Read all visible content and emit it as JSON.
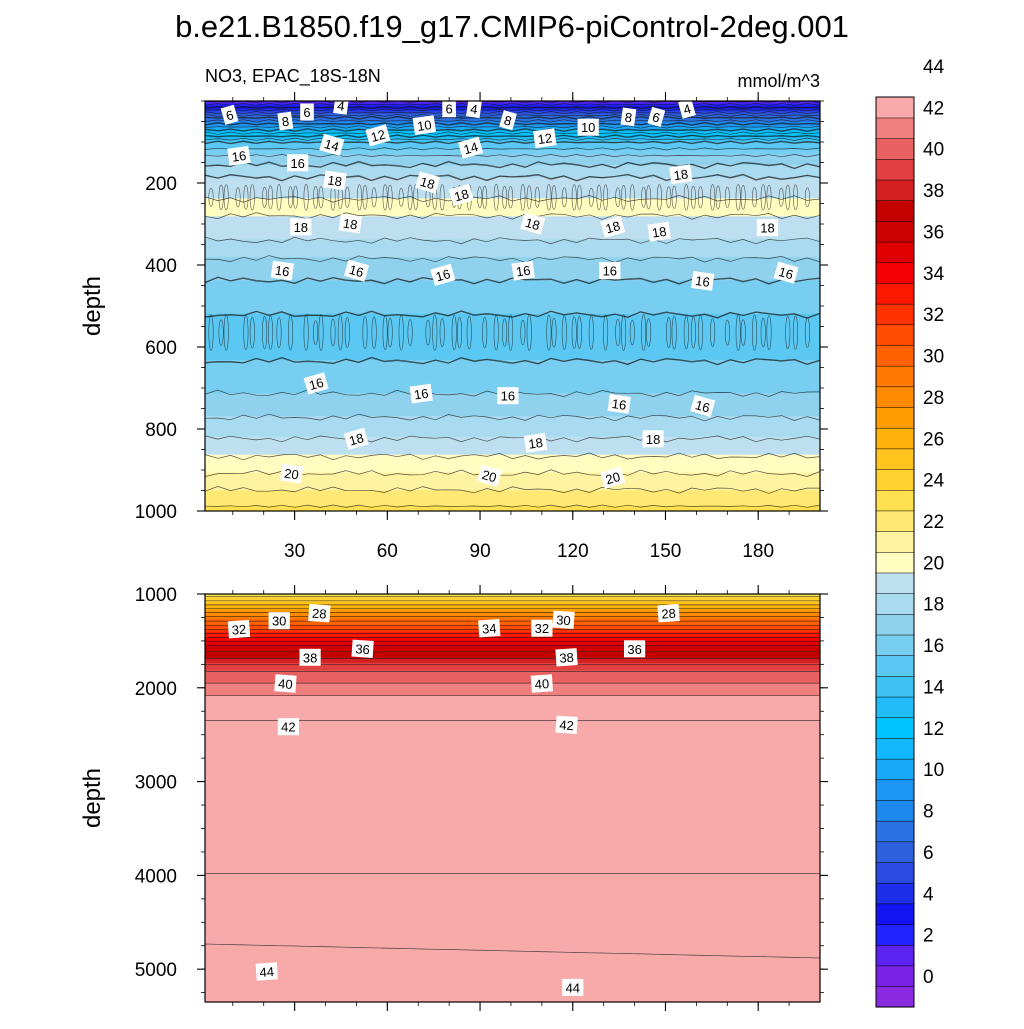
{
  "chart_data": {
    "type": "heatmap",
    "title": "b.e21.B1850.f19_g17.CMIP6-piControl-2deg.001",
    "left_string": "NO3, EPAC_18S-18N",
    "right_string": "mmol/m^3",
    "ylabel": "depth",
    "xlim": [
      1,
      200
    ],
    "x_ticks": [
      30,
      60,
      90,
      120,
      150,
      180
    ],
    "x_tick_labels": [
      "30",
      "60",
      "90",
      "120",
      "150",
      "180"
    ],
    "panels": [
      {
        "name": "upper",
        "ylim": [
          0,
          1000
        ],
        "y_reversed": true,
        "y_ticks": [
          200,
          400,
          600,
          800,
          1000
        ],
        "y_tick_labels": [
          "200",
          "400",
          "600",
          "800",
          "1000"
        ],
        "profile": [
          {
            "depth": 0,
            "value": 0
          },
          {
            "depth": 15,
            "value": 2
          },
          {
            "depth": 40,
            "value": 6
          },
          {
            "depth": 70,
            "value": 10
          },
          {
            "depth": 100,
            "value": 14
          },
          {
            "depth": 140,
            "value": 16.5
          },
          {
            "depth": 200,
            "value": 18.5
          },
          {
            "depth": 260,
            "value": 19.3
          },
          {
            "depth": 330,
            "value": 18.2
          },
          {
            "depth": 420,
            "value": 16.2
          },
          {
            "depth": 520,
            "value": 15.0
          },
          {
            "depth": 600,
            "value": 14.6
          },
          {
            "depth": 700,
            "value": 15.8
          },
          {
            "depth": 800,
            "value": 17.5
          },
          {
            "depth": 900,
            "value": 19.8
          },
          {
            "depth": 1000,
            "value": 22.3
          }
        ],
        "contour_labels": [
          {
            "x": 9,
            "depth": 35,
            "text": "6"
          },
          {
            "x": 27,
            "depth": 50,
            "text": "8"
          },
          {
            "x": 34,
            "depth": 28,
            "text": "6"
          },
          {
            "x": 45,
            "depth": 12,
            "text": "4"
          },
          {
            "x": 42,
            "depth": 108,
            "text": "14"
          },
          {
            "x": 57,
            "depth": 85,
            "text": "12"
          },
          {
            "x": 72,
            "depth": 60,
            "text": "10"
          },
          {
            "x": 80,
            "depth": 20,
            "text": "6"
          },
          {
            "x": 88,
            "depth": 20,
            "text": "4"
          },
          {
            "x": 99,
            "depth": 48,
            "text": "8"
          },
          {
            "x": 87,
            "depth": 115,
            "text": "14"
          },
          {
            "x": 111,
            "depth": 92,
            "text": "12"
          },
          {
            "x": 125,
            "depth": 65,
            "text": "10"
          },
          {
            "x": 138,
            "depth": 40,
            "text": "8"
          },
          {
            "x": 147,
            "depth": 40,
            "text": "6"
          },
          {
            "x": 157,
            "depth": 20,
            "text": "4"
          },
          {
            "x": 12,
            "depth": 135,
            "text": "16"
          },
          {
            "x": 31,
            "depth": 152,
            "text": "16"
          },
          {
            "x": 43,
            "depth": 195,
            "text": "18"
          },
          {
            "x": 73,
            "depth": 200,
            "text": "18"
          },
          {
            "x": 84,
            "depth": 230,
            "text": "18"
          },
          {
            "x": 155,
            "depth": 180,
            "text": "18"
          },
          {
            "x": 32,
            "depth": 308,
            "text": "18"
          },
          {
            "x": 48,
            "depth": 300,
            "text": "18"
          },
          {
            "x": 107,
            "depth": 300,
            "text": "18"
          },
          {
            "x": 133,
            "depth": 308,
            "text": "18"
          },
          {
            "x": 148,
            "depth": 320,
            "text": "18"
          },
          {
            "x": 183,
            "depth": 310,
            "text": "18"
          },
          {
            "x": 26,
            "depth": 415,
            "text": "16"
          },
          {
            "x": 50,
            "depth": 415,
            "text": "16"
          },
          {
            "x": 78,
            "depth": 425,
            "text": "16"
          },
          {
            "x": 104,
            "depth": 415,
            "text": "16"
          },
          {
            "x": 132,
            "depth": 415,
            "text": "16"
          },
          {
            "x": 162,
            "depth": 440,
            "text": "16"
          },
          {
            "x": 189,
            "depth": 420,
            "text": "16"
          },
          {
            "x": 37,
            "depth": 690,
            "text": "16"
          },
          {
            "x": 71,
            "depth": 715,
            "text": "16"
          },
          {
            "x": 99,
            "depth": 720,
            "text": "16"
          },
          {
            "x": 135,
            "depth": 740,
            "text": "16"
          },
          {
            "x": 162,
            "depth": 745,
            "text": "16"
          },
          {
            "x": 50,
            "depth": 825,
            "text": "18"
          },
          {
            "x": 108,
            "depth": 835,
            "text": "18"
          },
          {
            "x": 146,
            "depth": 825,
            "text": "18"
          },
          {
            "x": 29,
            "depth": 910,
            "text": "20"
          },
          {
            "x": 93,
            "depth": 915,
            "text": "20"
          },
          {
            "x": 133,
            "depth": 920,
            "text": "20"
          }
        ]
      },
      {
        "name": "lower",
        "ylim": [
          1000,
          5350
        ],
        "y_reversed": true,
        "y_ticks": [
          1000,
          2000,
          3000,
          4000,
          5000
        ],
        "y_tick_labels": [
          "1000",
          "2000",
          "3000",
          "4000",
          "5000"
        ],
        "profile": [
          {
            "depth": 1000,
            "value": 22.3
          },
          {
            "depth": 1150,
            "value": 26
          },
          {
            "depth": 1350,
            "value": 30.5
          },
          {
            "depth": 1550,
            "value": 35
          },
          {
            "depth": 1800,
            "value": 38.8
          },
          {
            "depth": 2050,
            "value": 40.9
          },
          {
            "depth": 2400,
            "value": 42.2
          },
          {
            "depth": 3500,
            "value": 42.7
          },
          {
            "depth": 4450,
            "value": 43.3
          },
          {
            "depth": 5000,
            "value": 44.4
          },
          {
            "depth": 5350,
            "value": 44.8
          }
        ],
        "contour_labels": [
          {
            "x": 12,
            "depth": 1380,
            "text": "32"
          },
          {
            "x": 25,
            "depth": 1290,
            "text": "30"
          },
          {
            "x": 38,
            "depth": 1210,
            "text": "28"
          },
          {
            "x": 93,
            "depth": 1370,
            "text": "34"
          },
          {
            "x": 110,
            "depth": 1370,
            "text": "32"
          },
          {
            "x": 117,
            "depth": 1280,
            "text": "30"
          },
          {
            "x": 151,
            "depth": 1210,
            "text": "28"
          },
          {
            "x": 35,
            "depth": 1680,
            "text": "38"
          },
          {
            "x": 52,
            "depth": 1590,
            "text": "36"
          },
          {
            "x": 118,
            "depth": 1680,
            "text": "38"
          },
          {
            "x": 140,
            "depth": 1590,
            "text": "36"
          },
          {
            "x": 27,
            "depth": 1960,
            "text": "40"
          },
          {
            "x": 110,
            "depth": 1960,
            "text": "40"
          },
          {
            "x": 28,
            "depth": 2420,
            "text": "42"
          },
          {
            "x": 118,
            "depth": 2400,
            "text": "42"
          },
          {
            "x": 21,
            "depth": 5030,
            "text": "44"
          },
          {
            "x": 120,
            "depth": 5200,
            "text": "44"
          }
        ]
      }
    ],
    "colorbar": {
      "levels": [
        0,
        2,
        4,
        6,
        8,
        10,
        12,
        14,
        16,
        18,
        20,
        22,
        24,
        26,
        28,
        30,
        32,
        34,
        36,
        38,
        40,
        42,
        44
      ],
      "labels": [
        "0",
        "2",
        "4",
        "6",
        "8",
        "10",
        "12",
        "14",
        "16",
        "18",
        "20",
        "22",
        "24",
        "26",
        "28",
        "30",
        "32",
        "34",
        "36",
        "38",
        "40",
        "42",
        "44"
      ],
      "colors": [
        "#8a2be2",
        "#7a22e6",
        "#5b22f0",
        "#2222ff",
        "#1414f0",
        "#1c2ee8",
        "#2a4ae0",
        "#2c60dc",
        "#2a72e4",
        "#1e88ee",
        "#1c96f4",
        "#1aa8f8",
        "#12b8fc",
        "#00c4ff",
        "#22bcf8",
        "#3ec2f4",
        "#5ac8f2",
        "#78cef0",
        "#90d2ee",
        "#a8daf0",
        "#bedff0",
        "#fffdc0",
        "#fff2a0",
        "#ffe874",
        "#ffe050",
        "#ffd232",
        "#ffc31e",
        "#ffb20c",
        "#ff9c00",
        "#ff8a00",
        "#ff7800",
        "#ff6200",
        "#ff4c00",
        "#ff3200",
        "#ff1800",
        "#f40000",
        "#e00000",
        "#cc0000",
        "#c40000",
        "#d42020",
        "#e04040",
        "#e86060",
        "#f08080",
        "#f8aaaa"
      ]
    }
  }
}
